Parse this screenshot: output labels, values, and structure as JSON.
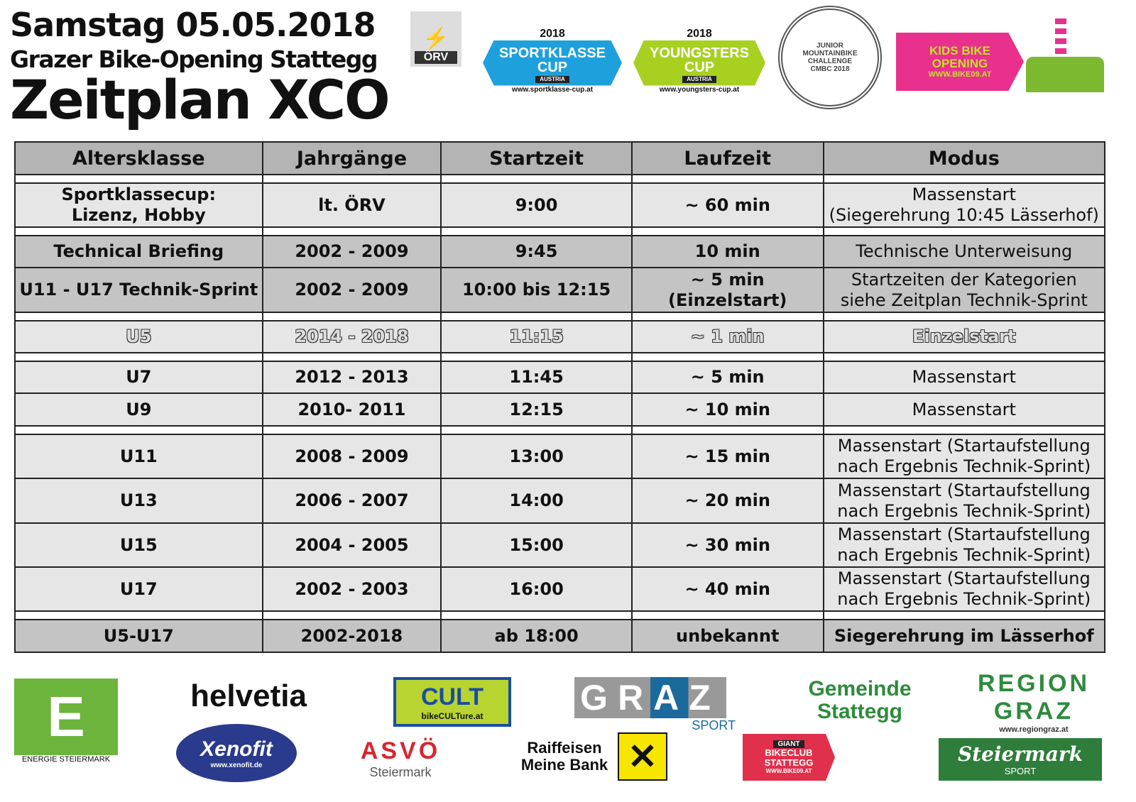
{
  "header": {
    "line1": "Samstag 05.05.2018",
    "line2": "Grazer Bike-Opening Stattegg",
    "line3": "Zeitplan XCO"
  },
  "top_logos": {
    "orv": "ÖRV",
    "sportklasse": {
      "year": "2018",
      "name": "SPORTKLASSE CUP",
      "country": "AUSTRIA",
      "url": "www.sportklasse-cup.at",
      "color": "#1ea0dc"
    },
    "youngsters": {
      "year": "2018",
      "name": "YOUNGSTERS CUP",
      "country": "AUSTRIA",
      "url": "www.youngsters-cup.at",
      "color": "#a8d020"
    },
    "cmbc": "JUNIOR MOUNTAINBIKE CHALLENGE CMBC 2018",
    "kids": {
      "name": "KIDS BIKE OPENING",
      "url": "WWW.BIKE09.AT",
      "color": "#e8308c"
    }
  },
  "table": {
    "columns": [
      "Altersklasse",
      "Jahrgänge",
      "Startzeit",
      "Laufzeit",
      "Modus"
    ],
    "rows": [
      {
        "spacer_before": true,
        "shade": "light",
        "cells": [
          "Sportklassecup:\nLizenz, Hobby",
          "lt. ÖRV",
          "9:00",
          "~ 60 min",
          "Massenstart\n(Siegerehrung 10:45 Lässerhof)"
        ],
        "mode_bold": false
      },
      {
        "spacer_before": true,
        "shade": "dark",
        "cells": [
          "Technical Briefing",
          "2002 - 2009",
          "9:45",
          "10 min",
          "Technische Unterweisung"
        ],
        "mode_bold": false
      },
      {
        "spacer_before": false,
        "shade": "dark",
        "cells": [
          "U11 - U17 Technik-Sprint",
          "2002 - 2009",
          "10:00 bis 12:15",
          "~ 5 min\n(Einzelstart)",
          "Startzeiten der Kategorien\nsiehe Zeitplan Technik-Sprint"
        ],
        "mode_bold": false
      },
      {
        "spacer_before": true,
        "shade": "light",
        "embossed": true,
        "cells": [
          "U5",
          "2014 - 2018",
          "11:15",
          "~ 1 min",
          "Einzelstart"
        ],
        "mode_bold": true
      },
      {
        "spacer_before": true,
        "shade": "light",
        "cells": [
          "U7",
          "2012 - 2013",
          "11:45",
          "~ 5 min",
          "Massenstart"
        ],
        "mode_bold": false
      },
      {
        "spacer_before": false,
        "shade": "light",
        "cells": [
          "U9",
          "2010- 2011",
          "12:15",
          "~ 10 min",
          "Massenstart"
        ],
        "mode_bold": false
      },
      {
        "spacer_before": true,
        "shade": "light",
        "cells": [
          "U11",
          "2008 - 2009",
          "13:00",
          "~ 15 min",
          "Massenstart (Startaufstellung\nnach Ergebnis Technik-Sprint)"
        ],
        "mode_bold": false
      },
      {
        "spacer_before": false,
        "shade": "light",
        "cells": [
          "U13",
          "2006 - 2007",
          "14:00",
          "~ 20 min",
          "Massenstart (Startaufstellung\nnach Ergebnis Technik-Sprint)"
        ],
        "mode_bold": false
      },
      {
        "spacer_before": false,
        "shade": "light",
        "cells": [
          "U15",
          "2004 - 2005",
          "15:00",
          "~ 30 min",
          "Massenstart (Startaufstellung\nnach Ergebnis Technik-Sprint)"
        ],
        "mode_bold": false
      },
      {
        "spacer_before": false,
        "shade": "light",
        "cells": [
          "U17",
          "2002 - 2003",
          "16:00",
          "~ 40 min",
          "Massenstart (Startaufstellung\nnach Ergebnis Technik-Sprint)"
        ],
        "mode_bold": false
      },
      {
        "spacer_before": true,
        "shade": "dark",
        "cells": [
          "U5-U17",
          "2002-2018",
          "ab 18:00",
          "unbekannt",
          "Siegerehrung im Lässerhof"
        ],
        "mode_bold": true
      }
    ]
  },
  "sponsors": [
    {
      "name": "ENERGIE STEIERMARK",
      "glyph": "E",
      "color": "#6cb43c"
    },
    {
      "name": "helvetia",
      "color": "#111"
    },
    {
      "name": "bikeCULTure.at",
      "glyph": "CULT",
      "color": "#b8d430"
    },
    {
      "name": "GRAZ",
      "sub": "SPORT",
      "color": "#999"
    },
    {
      "name": "Gemeinde Stattegg",
      "color": "#2e8b3c"
    },
    {
      "name": "REGION GRAZ",
      "url": "www.regiongraz.at",
      "color": "#2e8b3c"
    },
    {
      "name": "Xenofit",
      "url": "www.xenofit.de",
      "color": "#2a3a8c"
    },
    {
      "name": "ASVÖ",
      "sub": "Steiermark",
      "color": "#d8262e"
    },
    {
      "name": "Raiffeisen Meine Bank",
      "color": "#f7e600"
    },
    {
      "name": "BIKECLUB STATTEGG",
      "brand": "GIANT",
      "url": "WWW.BIKE09.AT",
      "color": "#e0304c"
    },
    {
      "name": "Steiermark",
      "sub": "SPORT",
      "color": "#2e7d3a"
    }
  ]
}
